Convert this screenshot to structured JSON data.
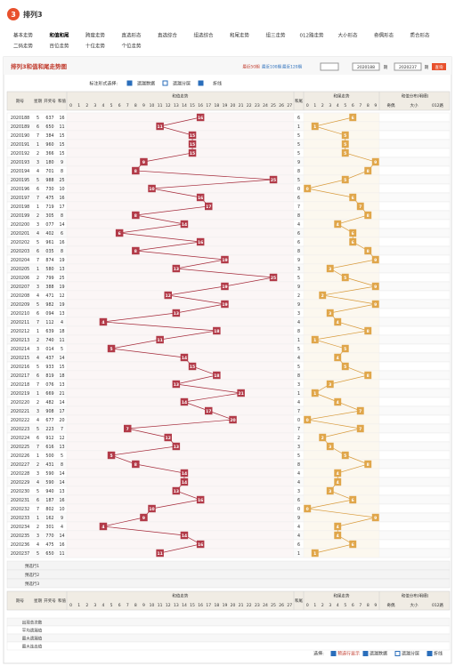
{
  "header": {
    "title": "排列3"
  },
  "nav": [
    "基本走势",
    "和值和尾",
    "跨度走势",
    "直选形态",
    "直选综合",
    "组选综合",
    "和尾走势",
    "组三走势",
    "012路走势",
    "大小形态",
    "奇偶形态",
    "质合形态",
    "二码走势",
    "百位走势",
    "十位走势",
    "个位走势"
  ],
  "panel": {
    "title": "排列3和值和尾走势图",
    "quick": [
      "最近50期",
      "最近100期",
      "最近120期"
    ],
    "from": "2020188",
    "to": "2020237",
    "unit": "期",
    "query": "查询"
  },
  "options": {
    "label": "标注形式选择:",
    "items": [
      "遗漏数据",
      "遗漏分层",
      "折线"
    ]
  },
  "table": {
    "headers": {
      "issue": "期号",
      "week": "星期",
      "number": "开奖号",
      "sum": "和值",
      "sum_trend": "和值走势",
      "tail": "和尾",
      "tail_trend": "和尾走势",
      "dist": "和值分布(明细)",
      "odd_even": "奇偶",
      "big_small": "大小",
      "road": "012路"
    },
    "sum_columns": [
      0,
      1,
      2,
      3,
      4,
      5,
      6,
      7,
      8,
      9,
      10,
      11,
      12,
      13,
      14,
      15,
      16,
      17,
      18,
      19,
      20,
      21,
      22,
      23,
      24,
      25,
      26,
      27
    ],
    "tail_columns": [
      0,
      1,
      2,
      3,
      4,
      5,
      6,
      7,
      8,
      9
    ],
    "rows": [
      {
        "issue": "2020188",
        "week": 5,
        "number": "637",
        "sum": 16,
        "tail": 6
      },
      {
        "issue": "2020189",
        "week": 6,
        "number": "650",
        "sum": 11,
        "tail": 1
      },
      {
        "issue": "2020190",
        "week": 7,
        "number": "384",
        "sum": 15,
        "tail": 5
      },
      {
        "issue": "2020191",
        "week": 1,
        "number": "960",
        "sum": 15,
        "tail": 5
      },
      {
        "issue": "2020192",
        "week": 2,
        "number": "366",
        "sum": 15,
        "tail": 5
      },
      {
        "issue": "2020193",
        "week": 3,
        "number": "180",
        "sum": 9,
        "tail": 9
      },
      {
        "issue": "2020194",
        "week": 4,
        "number": "701",
        "sum": 8,
        "tail": 8
      },
      {
        "issue": "2020195",
        "week": 5,
        "number": "988",
        "sum": 25,
        "tail": 5
      },
      {
        "issue": "2020196",
        "week": 6,
        "number": "730",
        "sum": 10,
        "tail": 0
      },
      {
        "issue": "2020197",
        "week": 7,
        "number": "475",
        "sum": 16,
        "tail": 6
      },
      {
        "issue": "2020198",
        "week": 1,
        "number": "719",
        "sum": 17,
        "tail": 7
      },
      {
        "issue": "2020199",
        "week": 2,
        "number": "305",
        "sum": 8,
        "tail": 8
      },
      {
        "issue": "2020200",
        "week": 3,
        "number": "077",
        "sum": 14,
        "tail": 4
      },
      {
        "issue": "2020201",
        "week": 4,
        "number": "402",
        "sum": 6,
        "tail": 6
      },
      {
        "issue": "2020202",
        "week": 5,
        "number": "961",
        "sum": 16,
        "tail": 6
      },
      {
        "issue": "2020203",
        "week": 6,
        "number": "035",
        "sum": 8,
        "tail": 8
      },
      {
        "issue": "2020204",
        "week": 7,
        "number": "874",
        "sum": 19,
        "tail": 9
      },
      {
        "issue": "2020205",
        "week": 1,
        "number": "580",
        "sum": 13,
        "tail": 3
      },
      {
        "issue": "2020206",
        "week": 2,
        "number": "799",
        "sum": 25,
        "tail": 5
      },
      {
        "issue": "2020207",
        "week": 3,
        "number": "388",
        "sum": 19,
        "tail": 9
      },
      {
        "issue": "2020208",
        "week": 4,
        "number": "471",
        "sum": 12,
        "tail": 2
      },
      {
        "issue": "2020209",
        "week": 5,
        "number": "982",
        "sum": 19,
        "tail": 9
      },
      {
        "issue": "2020210",
        "week": 6,
        "number": "094",
        "sum": 13,
        "tail": 3
      },
      {
        "issue": "2020211",
        "week": 7,
        "number": "112",
        "sum": 4,
        "tail": 4
      },
      {
        "issue": "2020212",
        "week": 1,
        "number": "639",
        "sum": 18,
        "tail": 8
      },
      {
        "issue": "2020213",
        "week": 2,
        "number": "740",
        "sum": 11,
        "tail": 1
      },
      {
        "issue": "2020214",
        "week": 3,
        "number": "014",
        "sum": 5,
        "tail": 5
      },
      {
        "issue": "2020215",
        "week": 4,
        "number": "437",
        "sum": 14,
        "tail": 4
      },
      {
        "issue": "2020216",
        "week": 5,
        "number": "933",
        "sum": 15,
        "tail": 5
      },
      {
        "issue": "2020217",
        "week": 6,
        "number": "819",
        "sum": 18,
        "tail": 8
      },
      {
        "issue": "2020218",
        "week": 7,
        "number": "076",
        "sum": 13,
        "tail": 3
      },
      {
        "issue": "2020219",
        "week": 1,
        "number": "669",
        "sum": 21,
        "tail": 1
      },
      {
        "issue": "2020220",
        "week": 2,
        "number": "482",
        "sum": 14,
        "tail": 4
      },
      {
        "issue": "2020221",
        "week": 3,
        "number": "908",
        "sum": 17,
        "tail": 7
      },
      {
        "issue": "2020222",
        "week": 4,
        "number": "677",
        "sum": 20,
        "tail": 0
      },
      {
        "issue": "2020223",
        "week": 5,
        "number": "223",
        "sum": 7,
        "tail": 7
      },
      {
        "issue": "2020224",
        "week": 6,
        "number": "912",
        "sum": 12,
        "tail": 2
      },
      {
        "issue": "2020225",
        "week": 7,
        "number": "616",
        "sum": 13,
        "tail": 3
      },
      {
        "issue": "2020226",
        "week": 1,
        "number": "500",
        "sum": 5,
        "tail": 5
      },
      {
        "issue": "2020227",
        "week": 2,
        "number": "431",
        "sum": 8,
        "tail": 8
      },
      {
        "issue": "2020228",
        "week": 3,
        "number": "590",
        "sum": 14,
        "tail": 4
      },
      {
        "issue": "2020229",
        "week": 4,
        "number": "590",
        "sum": 14,
        "tail": 4
      },
      {
        "issue": "2020230",
        "week": 5,
        "number": "940",
        "sum": 13,
        "tail": 3
      },
      {
        "issue": "2020231",
        "week": 6,
        "number": "187",
        "sum": 16,
        "tail": 6
      },
      {
        "issue": "2020232",
        "week": 7,
        "number": "802",
        "sum": 10,
        "tail": 0
      },
      {
        "issue": "2020233",
        "week": 1,
        "number": "162",
        "sum": 9,
        "tail": 9
      },
      {
        "issue": "2020234",
        "week": 2,
        "number": "301",
        "sum": 4,
        "tail": 4
      },
      {
        "issue": "2020235",
        "week": 3,
        "number": "770",
        "sum": 14,
        "tail": 4
      },
      {
        "issue": "2020236",
        "week": 4,
        "number": "475",
        "sum": 16,
        "tail": 6
      },
      {
        "issue": "2020237",
        "week": 5,
        "number": "650",
        "sum": 11,
        "tail": 1
      }
    ],
    "preselect": [
      "预选行1",
      "预选行2",
      "预选行3"
    ],
    "stats": [
      "出现总次数",
      "平均遗漏值",
      "最大遗漏值",
      "最大连出值"
    ]
  },
  "footer": {
    "label": "选择:",
    "items": [
      "预选行显示",
      "遗漏数据",
      "遗漏分层",
      "折线"
    ]
  }
}
